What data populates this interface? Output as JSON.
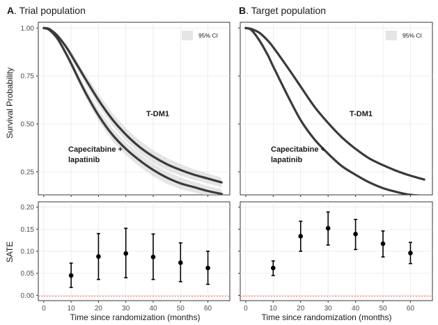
{
  "panels": [
    {
      "letter": "A",
      "title": ". Trial population"
    },
    {
      "letter": "B",
      "title": ". Target population"
    }
  ],
  "legend_label": "95% CI",
  "survival_ylabel": "Survival Probability",
  "sate_ylabel": "SATE",
  "xlabel": "Time since randomization (months)",
  "series_labels": {
    "tdm1": "T-DM1",
    "cap_line1": "Capecitabine +",
    "cap_line2": "lapatinib"
  },
  "colors": {
    "curve": "#3a3a3a",
    "ci_band": "#cfcfcf",
    "reference_line": "#e86a6a",
    "point": "#000000"
  },
  "chart_data": [
    {
      "type": "line",
      "panel": "A",
      "title": "A. Trial population",
      "xlabel": "",
      "ylabel": "Survival Probability",
      "xlim": [
        -2,
        68
      ],
      "ylim": [
        0.13,
        1.03
      ],
      "x_ticks": [
        0,
        10,
        20,
        30,
        40,
        50,
        60
      ],
      "y_ticks": [
        0.25,
        0.5,
        0.75,
        1.0
      ],
      "y_tick_labels": [
        "0.25",
        "0.50",
        "0.75",
        "1.00"
      ],
      "grid": true,
      "legend": "top-right",
      "series": [
        {
          "name": "T-DM1",
          "x": [
            0,
            2,
            5,
            8,
            10,
            15,
            20,
            25,
            30,
            35,
            40,
            45,
            50,
            55,
            60,
            65
          ],
          "y": [
            1.0,
            0.995,
            0.96,
            0.905,
            0.86,
            0.74,
            0.625,
            0.525,
            0.445,
            0.38,
            0.33,
            0.29,
            0.26,
            0.235,
            0.215,
            0.195
          ],
          "ci_half_width": [
            0,
            0.005,
            0.01,
            0.015,
            0.02,
            0.025,
            0.03,
            0.032,
            0.033,
            0.033,
            0.033,
            0.032,
            0.03,
            0.028,
            0.026,
            0.025
          ]
        },
        {
          "name": "Capecitabine + lapatinib",
          "x": [
            0,
            2,
            5,
            8,
            10,
            15,
            20,
            25,
            30,
            35,
            40,
            45,
            50,
            55,
            60,
            65
          ],
          "y": [
            1.0,
            0.99,
            0.945,
            0.87,
            0.815,
            0.67,
            0.545,
            0.445,
            0.37,
            0.31,
            0.26,
            0.22,
            0.19,
            0.17,
            0.15,
            0.135
          ],
          "ci_half_width": [
            0,
            0.005,
            0.01,
            0.015,
            0.02,
            0.025,
            0.03,
            0.032,
            0.033,
            0.033,
            0.033,
            0.032,
            0.03,
            0.028,
            0.026,
            0.025
          ]
        }
      ]
    },
    {
      "type": "line",
      "panel": "B",
      "title": "B. Target population",
      "xlabel": "",
      "ylabel": "",
      "xlim": [
        -2,
        68
      ],
      "ylim": [
        0.13,
        1.03
      ],
      "x_ticks": [
        0,
        10,
        20,
        30,
        40,
        50,
        60
      ],
      "y_ticks": [
        0.25,
        0.5,
        0.75,
        1.0
      ],
      "grid": true,
      "legend": "top-right",
      "series": [
        {
          "name": "T-DM1",
          "x": [
            0,
            2,
            5,
            8,
            10,
            15,
            20,
            25,
            30,
            35,
            40,
            45,
            50,
            55,
            60,
            65
          ],
          "y": [
            1.0,
            0.995,
            0.975,
            0.935,
            0.9,
            0.8,
            0.695,
            0.59,
            0.505,
            0.43,
            0.37,
            0.32,
            0.285,
            0.255,
            0.23,
            0.21
          ]
        },
        {
          "name": "Capecitabine + lapatinib",
          "x": [
            0,
            2,
            5,
            8,
            10,
            15,
            20,
            25,
            30,
            35,
            40,
            45,
            50,
            55,
            60,
            65
          ],
          "y": [
            1.0,
            0.99,
            0.935,
            0.86,
            0.8,
            0.655,
            0.52,
            0.42,
            0.345,
            0.28,
            0.235,
            0.195,
            0.165,
            0.145,
            0.13,
            0.125
          ]
        }
      ]
    },
    {
      "type": "scatter",
      "panel": "A",
      "xlabel": "Time since randomization (months)",
      "ylabel": "SATE",
      "xlim": [
        -2,
        68
      ],
      "ylim": [
        -0.012,
        0.212
      ],
      "x_ticks": [
        0,
        10,
        20,
        30,
        40,
        50,
        60
      ],
      "y_ticks": [
        0.0,
        0.05,
        0.1,
        0.15,
        0.2
      ],
      "y_tick_labels": [
        "0.00",
        "0.05",
        "0.10",
        "0.15",
        "0.20"
      ],
      "grid": true,
      "reference_line_y": -0.002,
      "series": [
        {
          "x": [
            10,
            20,
            30,
            40,
            50,
            60
          ],
          "y": [
            0.045,
            0.088,
            0.095,
            0.087,
            0.074,
            0.062
          ],
          "lower": [
            0.018,
            0.036,
            0.04,
            0.036,
            0.031,
            0.025
          ],
          "upper": [
            0.073,
            0.14,
            0.152,
            0.139,
            0.119,
            0.1
          ]
        }
      ]
    },
    {
      "type": "scatter",
      "panel": "B",
      "xlabel": "Time since randomization (months)",
      "ylabel": "",
      "xlim": [
        -2,
        68
      ],
      "ylim": [
        -0.012,
        0.212
      ],
      "x_ticks": [
        0,
        10,
        20,
        30,
        40,
        50,
        60
      ],
      "y_ticks": [
        0.0,
        0.05,
        0.1,
        0.15,
        0.2
      ],
      "grid": true,
      "reference_line_y": -0.002,
      "series": [
        {
          "x": [
            10,
            20,
            30,
            40,
            50,
            60
          ],
          "y": [
            0.062,
            0.134,
            0.152,
            0.139,
            0.117,
            0.096
          ],
          "lower": [
            0.045,
            0.1,
            0.114,
            0.104,
            0.087,
            0.072
          ],
          "upper": [
            0.078,
            0.168,
            0.189,
            0.172,
            0.146,
            0.12
          ]
        }
      ]
    }
  ]
}
